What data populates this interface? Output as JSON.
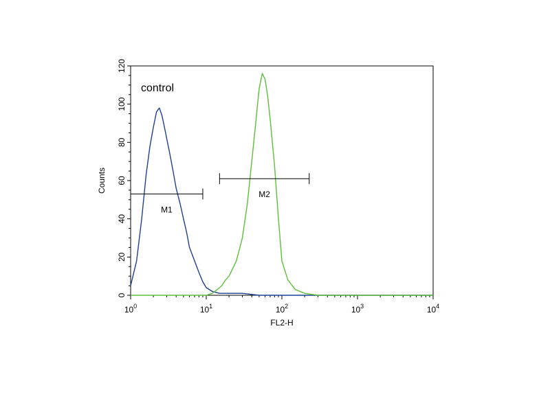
{
  "chart_data": {
    "type": "line",
    "title": "",
    "xlabel": "FL2-H",
    "ylabel": "Counts",
    "x_scale": "log",
    "xlim": [
      1,
      10000
    ],
    "ylim": [
      0,
      120
    ],
    "x_ticks": [
      {
        "value": 1,
        "base": "10",
        "exp": "0"
      },
      {
        "value": 10,
        "base": "10",
        "exp": "1"
      },
      {
        "value": 100,
        "base": "10",
        "exp": "2"
      },
      {
        "value": 1000,
        "base": "10",
        "exp": "3"
      },
      {
        "value": 10000,
        "base": "10",
        "exp": "4"
      }
    ],
    "y_ticks": [
      "0",
      "20",
      "40",
      "60",
      "80",
      "100",
      "120"
    ],
    "grid": false,
    "legend": "none",
    "annotation": "control",
    "series": [
      {
        "color": "#1f3f8f",
        "x": [
          1.0,
          1.2,
          1.4,
          1.6,
          1.8,
          2.0,
          2.2,
          2.4,
          2.6,
          2.8,
          3.0,
          3.3,
          3.6,
          4.0,
          4.5,
          5.0,
          5.5,
          6.0,
          7.0,
          8.0,
          9.0,
          10.0,
          12.0,
          15.0,
          20.0,
          30.0,
          50.0,
          100.0,
          200.0,
          500.0,
          1000.0,
          5000.0,
          10000.0
        ],
        "y": [
          5,
          18,
          40,
          63,
          78,
          88,
          96,
          98,
          94,
          88,
          82,
          74,
          66,
          56,
          48,
          40,
          33,
          25,
          18,
          12,
          7,
          4,
          2,
          1,
          1,
          1,
          0,
          0,
          0,
          0,
          0,
          0,
          0
        ]
      },
      {
        "color": "#5cbf3a",
        "x": [
          1.0,
          5.0,
          10.0,
          12.0,
          14.0,
          16.0,
          18.0,
          20.0,
          25.0,
          30.0,
          35.0,
          40.0,
          45.0,
          50.0,
          55.0,
          60.0,
          65.0,
          70.0,
          80.0,
          90.0,
          100.0,
          120.0,
          150.0,
          200.0,
          300.0,
          1000.0,
          10000.0
        ],
        "y": [
          0,
          0,
          0,
          1,
          3,
          5,
          8,
          10,
          18,
          30,
          48,
          70,
          90,
          108,
          116,
          113,
          104,
          92,
          68,
          40,
          18,
          8,
          3,
          1,
          0,
          0,
          0
        ]
      }
    ],
    "markers": [
      {
        "label": "M1",
        "x_start": 1.0,
        "x_end": 9.0,
        "y": 53
      },
      {
        "label": "M2",
        "x_start": 15.0,
        "x_end": 230.0,
        "y": 61
      }
    ]
  }
}
